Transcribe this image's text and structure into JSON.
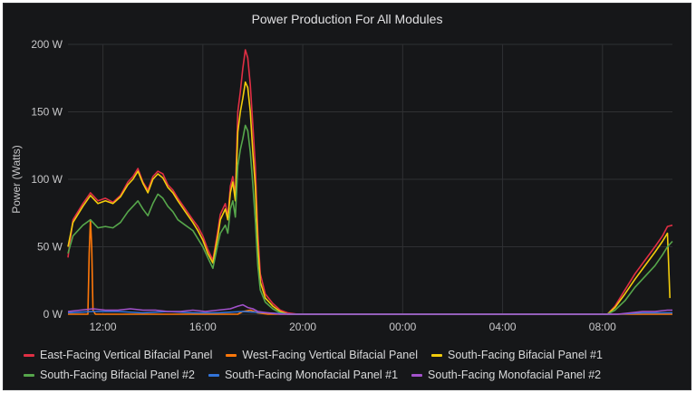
{
  "panel": {
    "title": "Power Production For All Modules"
  },
  "colors": {
    "background": "#161719",
    "grid": "#2f3033",
    "axis_text": "#c7c7c9"
  },
  "chart_data": {
    "type": "line",
    "title": "Power Production For All Modules",
    "xlabel": "",
    "ylabel": "Power (Watts)",
    "grid": true,
    "legend_position": "bottom",
    "x_unit": "hours since 10:36",
    "xlim": [
      0,
      24.2
    ],
    "ylim": [
      0,
      200
    ],
    "y_ticks": [
      0,
      50,
      100,
      150,
      200
    ],
    "y_tick_labels": [
      "0 W",
      "50 W",
      "100 W",
      "150 W",
      "200 W"
    ],
    "x_ticks": [
      1.4,
      5.4,
      9.4,
      13.4,
      17.4,
      21.4
    ],
    "x_tick_labels": [
      "12:00",
      "16:00",
      "20:00",
      "00:00",
      "04:00",
      "08:00"
    ],
    "series": [
      {
        "name": "East-Facing Vertical Bifacial Panel",
        "color": "#e02f44",
        "points": [
          [
            0,
            42
          ],
          [
            0.2,
            70
          ],
          [
            0.6,
            82
          ],
          [
            0.9,
            90
          ],
          [
            1.2,
            84
          ],
          [
            1.5,
            86
          ],
          [
            1.8,
            83
          ],
          [
            2.1,
            88
          ],
          [
            2.4,
            98
          ],
          [
            2.6,
            102
          ],
          [
            2.8,
            108
          ],
          [
            3.0,
            98
          ],
          [
            3.2,
            92
          ],
          [
            3.4,
            102
          ],
          [
            3.6,
            106
          ],
          [
            3.8,
            104
          ],
          [
            4.0,
            96
          ],
          [
            4.2,
            92
          ],
          [
            4.4,
            86
          ],
          [
            4.7,
            78
          ],
          [
            5.0,
            70
          ],
          [
            5.2,
            65
          ],
          [
            5.4,
            58
          ],
          [
            5.6,
            48
          ],
          [
            5.8,
            40
          ],
          [
            6.0,
            62
          ],
          [
            6.1,
            74
          ],
          [
            6.3,
            82
          ],
          [
            6.4,
            72
          ],
          [
            6.5,
            95
          ],
          [
            6.6,
            102
          ],
          [
            6.7,
            88
          ],
          [
            6.8,
            150
          ],
          [
            6.9,
            165
          ],
          [
            7.0,
            182
          ],
          [
            7.1,
            196
          ],
          [
            7.2,
            190
          ],
          [
            7.3,
            170
          ],
          [
            7.4,
            140
          ],
          [
            7.5,
            110
          ],
          [
            7.6,
            60
          ],
          [
            7.7,
            30
          ],
          [
            7.9,
            15
          ],
          [
            8.2,
            8
          ],
          [
            8.5,
            3
          ],
          [
            8.8,
            1
          ],
          [
            9.2,
            0
          ],
          [
            21.6,
            0
          ],
          [
            21.9,
            6
          ],
          [
            22.3,
            18
          ],
          [
            22.7,
            30
          ],
          [
            23.1,
            40
          ],
          [
            23.5,
            50
          ],
          [
            23.8,
            58
          ],
          [
            24.0,
            65
          ],
          [
            24.2,
            66
          ]
        ]
      },
      {
        "name": "West-Facing Vertical Bifacial Panel",
        "color": "#ff780a",
        "points": [
          [
            0,
            0
          ],
          [
            0.8,
            0
          ],
          [
            0.85,
            45
          ],
          [
            0.9,
            70
          ],
          [
            0.95,
            50
          ],
          [
            1.0,
            3
          ],
          [
            1.1,
            0
          ],
          [
            6.8,
            0
          ],
          [
            7.0,
            2
          ],
          [
            7.3,
            3
          ],
          [
            7.6,
            1
          ],
          [
            8.0,
            0
          ],
          [
            24.2,
            0
          ]
        ]
      },
      {
        "name": "South-Facing Bifacial Panel #1",
        "color": "#f2cc0c",
        "points": [
          [
            0,
            50
          ],
          [
            0.2,
            68
          ],
          [
            0.6,
            80
          ],
          [
            0.9,
            88
          ],
          [
            1.2,
            82
          ],
          [
            1.5,
            84
          ],
          [
            1.8,
            82
          ],
          [
            2.1,
            87
          ],
          [
            2.4,
            96
          ],
          [
            2.6,
            100
          ],
          [
            2.8,
            106
          ],
          [
            3.0,
            97
          ],
          [
            3.2,
            90
          ],
          [
            3.4,
            100
          ],
          [
            3.6,
            104
          ],
          [
            3.8,
            101
          ],
          [
            4.0,
            94
          ],
          [
            4.2,
            90
          ],
          [
            4.4,
            84
          ],
          [
            4.7,
            76
          ],
          [
            5.0,
            68
          ],
          [
            5.2,
            62
          ],
          [
            5.4,
            55
          ],
          [
            5.6,
            45
          ],
          [
            5.8,
            38
          ],
          [
            6.0,
            58
          ],
          [
            6.1,
            70
          ],
          [
            6.3,
            78
          ],
          [
            6.4,
            70
          ],
          [
            6.5,
            90
          ],
          [
            6.6,
            98
          ],
          [
            6.7,
            84
          ],
          [
            6.8,
            135
          ],
          [
            6.9,
            150
          ],
          [
            7.0,
            160
          ],
          [
            7.1,
            172
          ],
          [
            7.2,
            168
          ],
          [
            7.3,
            150
          ],
          [
            7.4,
            120
          ],
          [
            7.5,
            95
          ],
          [
            7.6,
            50
          ],
          [
            7.7,
            24
          ],
          [
            7.9,
            12
          ],
          [
            8.2,
            6
          ],
          [
            8.5,
            2
          ],
          [
            8.8,
            0
          ],
          [
            21.6,
            0
          ],
          [
            21.9,
            5
          ],
          [
            22.3,
            15
          ],
          [
            22.7,
            26
          ],
          [
            23.1,
            36
          ],
          [
            23.5,
            46
          ],
          [
            23.8,
            54
          ],
          [
            24.0,
            60
          ],
          [
            24.1,
            12
          ]
        ]
      },
      {
        "name": "South-Facing Bifacial Panel #2",
        "color": "#56a64b",
        "points": [
          [
            0,
            45
          ],
          [
            0.2,
            58
          ],
          [
            0.6,
            66
          ],
          [
            0.9,
            70
          ],
          [
            1.2,
            64
          ],
          [
            1.5,
            65
          ],
          [
            1.8,
            64
          ],
          [
            2.1,
            68
          ],
          [
            2.4,
            76
          ],
          [
            2.6,
            80
          ],
          [
            2.8,
            84
          ],
          [
            3.0,
            78
          ],
          [
            3.2,
            73
          ],
          [
            3.4,
            82
          ],
          [
            3.6,
            89
          ],
          [
            3.8,
            86
          ],
          [
            4.0,
            80
          ],
          [
            4.2,
            76
          ],
          [
            4.4,
            70
          ],
          [
            4.7,
            66
          ],
          [
            5.0,
            62
          ],
          [
            5.2,
            56
          ],
          [
            5.4,
            50
          ],
          [
            5.6,
            42
          ],
          [
            5.8,
            34
          ],
          [
            6.0,
            52
          ],
          [
            6.1,
            60
          ],
          [
            6.3,
            66
          ],
          [
            6.4,
            60
          ],
          [
            6.5,
            78
          ],
          [
            6.6,
            84
          ],
          [
            6.7,
            72
          ],
          [
            6.8,
            110
          ],
          [
            6.9,
            122
          ],
          [
            7.0,
            130
          ],
          [
            7.1,
            140
          ],
          [
            7.2,
            136
          ],
          [
            7.3,
            120
          ],
          [
            7.4,
            96
          ],
          [
            7.5,
            70
          ],
          [
            7.6,
            36
          ],
          [
            7.7,
            18
          ],
          [
            7.9,
            9
          ],
          [
            8.2,
            4
          ],
          [
            8.5,
            1
          ],
          [
            8.8,
            0
          ],
          [
            21.6,
            0
          ],
          [
            21.9,
            3
          ],
          [
            22.3,
            10
          ],
          [
            22.7,
            20
          ],
          [
            23.1,
            28
          ],
          [
            23.5,
            36
          ],
          [
            23.8,
            44
          ],
          [
            24.0,
            50
          ],
          [
            24.2,
            54
          ]
        ]
      },
      {
        "name": "South-Facing Monofacial Panel #1",
        "color": "#3274d9",
        "points": [
          [
            0,
            1
          ],
          [
            1.0,
            2
          ],
          [
            2.0,
            2
          ],
          [
            3.0,
            1
          ],
          [
            4.0,
            2
          ],
          [
            5.0,
            1
          ],
          [
            6.0,
            1
          ],
          [
            7.0,
            2
          ],
          [
            8.0,
            1
          ],
          [
            9.0,
            0
          ],
          [
            22.0,
            0
          ],
          [
            23.0,
            1
          ],
          [
            24.2,
            1
          ]
        ]
      },
      {
        "name": "South-Facing Monofacial Panel #2",
        "color": "#a352cc",
        "points": [
          [
            0,
            2
          ],
          [
            0.5,
            3
          ],
          [
            1.0,
            4
          ],
          [
            1.5,
            3
          ],
          [
            2.0,
            3
          ],
          [
            2.5,
            4
          ],
          [
            3.0,
            3
          ],
          [
            3.5,
            3
          ],
          [
            4.0,
            2
          ],
          [
            4.5,
            2
          ],
          [
            5.0,
            3
          ],
          [
            5.5,
            2
          ],
          [
            6.0,
            3
          ],
          [
            6.5,
            4
          ],
          [
            6.8,
            6
          ],
          [
            7.0,
            7
          ],
          [
            7.2,
            5
          ],
          [
            7.4,
            4
          ],
          [
            7.6,
            2
          ],
          [
            8.0,
            1
          ],
          [
            8.5,
            0
          ],
          [
            22.0,
            0
          ],
          [
            22.5,
            1
          ],
          [
            23.0,
            2
          ],
          [
            23.5,
            2
          ],
          [
            24.0,
            3
          ],
          [
            24.2,
            3
          ]
        ]
      }
    ]
  },
  "legend": {
    "row1": [
      {
        "label": "East-Facing Vertical Bifacial Panel",
        "color": "#e02f44"
      },
      {
        "label": "West-Facing Vertical Bifacial Panel",
        "color": "#ff780a"
      },
      {
        "label": "South-Facing Bifacial Panel #1",
        "color": "#f2cc0c"
      }
    ],
    "row2": [
      {
        "label": "South-Facing Bifacial Panel #2",
        "color": "#56a64b"
      },
      {
        "label": "South-Facing Monofacial Panel #1",
        "color": "#3274d9"
      },
      {
        "label": "South-Facing Monofacial Panel #2",
        "color": "#a352cc"
      }
    ]
  }
}
